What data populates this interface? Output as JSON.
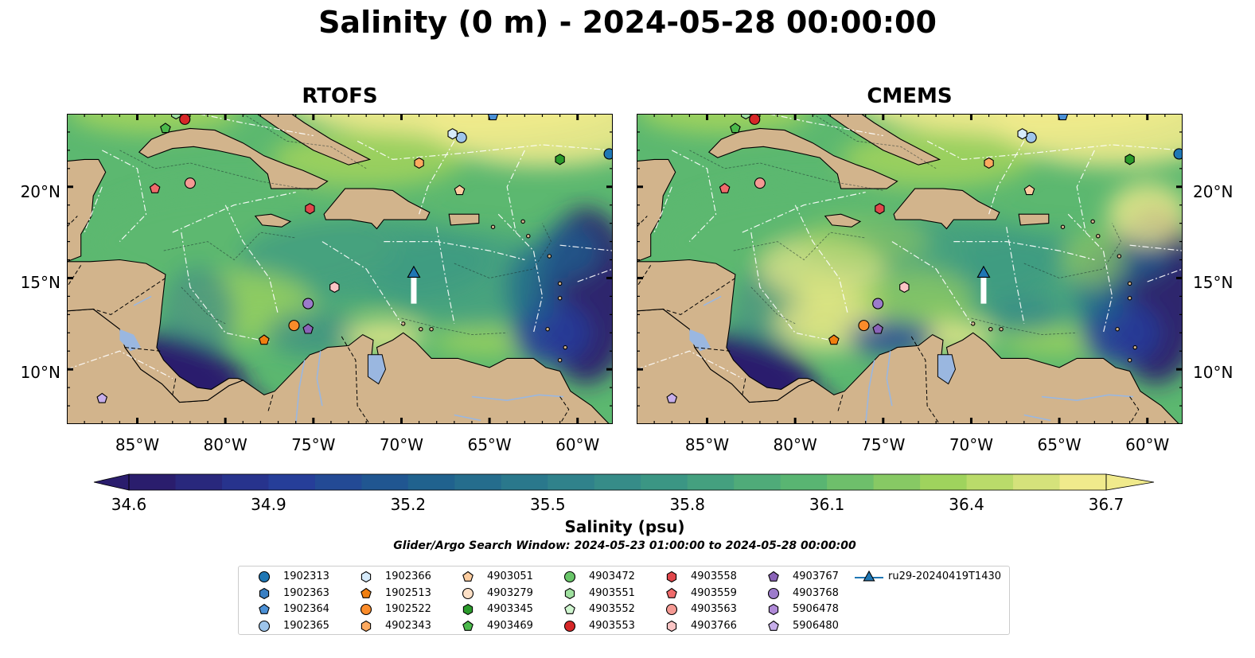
{
  "title": "Salinity (0 m) - 2024-05-28 00:00:00",
  "panels": [
    {
      "id": "rtofs",
      "title": "RTOFS"
    },
    {
      "id": "cmems",
      "title": "CMEMS"
    }
  ],
  "map_extent": {
    "lon": [
      -89,
      -58
    ],
    "lat": [
      7,
      24
    ]
  },
  "lat_ticks": [
    "20°N",
    "15°N",
    "10°N"
  ],
  "lon_ticks": [
    "85°W",
    "80°W",
    "75°W",
    "70°W",
    "65°W",
    "60°W"
  ],
  "colorbar": {
    "label": "Salinity (psu)",
    "ticks": [
      "34.6",
      "34.9",
      "35.2",
      "35.5",
      "35.8",
      "36.1",
      "36.4",
      "36.7"
    ],
    "range": [
      34.6,
      36.7
    ],
    "extend": "both",
    "colormap": [
      "#2a1d6d",
      "#263c9a",
      "#1e5f8e",
      "#2d7e8c",
      "#3e9a83",
      "#5cb870",
      "#a3d45c",
      "#f0ea8c"
    ]
  },
  "search_window": "Glider/Argo Search Window: 2024-05-23 01:00:00 to 2024-05-28 00:00:00",
  "colors": {
    "land": "#d2b48c",
    "lake": "#9ab7e0",
    "river": "#9ab7e0"
  },
  "legend": [
    {
      "label": "1902313",
      "marker": "circle",
      "color": "#1f77b4"
    },
    {
      "label": "1902363",
      "marker": "hexagon",
      "color": "#3a7fc2"
    },
    {
      "label": "1902364",
      "marker": "pentagon",
      "color": "#4b90d6"
    },
    {
      "label": "1902365",
      "marker": "circle",
      "color": "#9ec5eb"
    },
    {
      "label": "1902366",
      "marker": "hexagon",
      "color": "#d6ebfb"
    },
    {
      "label": "1902513",
      "marker": "pentagon",
      "color": "#f07f10"
    },
    {
      "label": "1902522",
      "marker": "circle",
      "color": "#fb8c2a"
    },
    {
      "label": "4902343",
      "marker": "hexagon",
      "color": "#fdaa60"
    },
    {
      "label": "4903051",
      "marker": "pentagon",
      "color": "#fdcda0"
    },
    {
      "label": "4903279",
      "marker": "circle",
      "color": "#fde0c6"
    },
    {
      "label": "4903345",
      "marker": "hexagon",
      "color": "#2b9b2b"
    },
    {
      "label": "4903469",
      "marker": "pentagon",
      "color": "#4bb94b"
    },
    {
      "label": "4903472",
      "marker": "circle",
      "color": "#69c569"
    },
    {
      "label": "4903551",
      "marker": "hexagon",
      "color": "#9fe09f"
    },
    {
      "label": "4903552",
      "marker": "pentagon",
      "color": "#cff5cf"
    },
    {
      "label": "4903553",
      "marker": "circle",
      "color": "#d62728"
    },
    {
      "label": "4903558",
      "marker": "hexagon",
      "color": "#e0464b"
    },
    {
      "label": "4903559",
      "marker": "pentagon",
      "color": "#f06b6b"
    },
    {
      "label": "4903563",
      "marker": "circle",
      "color": "#f59a94"
    },
    {
      "label": "4903766",
      "marker": "hexagon",
      "color": "#fbc5c5"
    },
    {
      "label": "4903767",
      "marker": "pentagon",
      "color": "#8a63b8"
    },
    {
      "label": "4903768",
      "marker": "circle",
      "color": "#9c7bcb"
    },
    {
      "label": "5906478",
      "marker": "hexagon",
      "color": "#b08ad8"
    },
    {
      "label": "5906480",
      "marker": "pentagon",
      "color": "#c7aeea"
    },
    {
      "label": "ru29-20240419T1430",
      "marker": "triangle-line",
      "color": "#1f77b4"
    }
  ],
  "floats": [
    {
      "id": "1902313",
      "lon": -58.2,
      "lat": 21.8
    },
    {
      "id": "1902364",
      "lon": -64.8,
      "lat": 23.9
    },
    {
      "id": "1902365",
      "lon": -66.6,
      "lat": 22.7
    },
    {
      "id": "1902366",
      "lon": -67.1,
      "lat": 22.9
    },
    {
      "id": "1902513",
      "lon": -77.8,
      "lat": 11.6
    },
    {
      "id": "1902522",
      "lon": -76.1,
      "lat": 12.4
    },
    {
      "id": "4902343",
      "lon": -69.0,
      "lat": 21.3
    },
    {
      "id": "4903051",
      "lon": -66.7,
      "lat": 19.8
    },
    {
      "id": "4903345",
      "lon": -61.0,
      "lat": 21.5
    },
    {
      "id": "4903469",
      "lon": -83.4,
      "lat": 23.2
    },
    {
      "id": "4903551",
      "lon": -82.8,
      "lat": 24.0
    },
    {
      "id": "4903553",
      "lon": -82.3,
      "lat": 23.7
    },
    {
      "id": "4903558",
      "lon": -75.2,
      "lat": 18.8
    },
    {
      "id": "4903559",
      "lon": -84.0,
      "lat": 19.9
    },
    {
      "id": "4903563",
      "lon": -82.0,
      "lat": 20.2
    },
    {
      "id": "4903766",
      "lon": -73.8,
      "lat": 14.5
    },
    {
      "id": "4903767",
      "lon": -75.3,
      "lat": 12.2
    },
    {
      "id": "4903768",
      "lon": -75.3,
      "lat": 13.6
    },
    {
      "id": "5906480",
      "lon": -87.0,
      "lat": 8.4
    }
  ],
  "glider": {
    "id": "ru29-20240419T1430",
    "track": [
      [
        -69.3,
        13.6
      ],
      [
        -69.3,
        15.2
      ]
    ]
  }
}
